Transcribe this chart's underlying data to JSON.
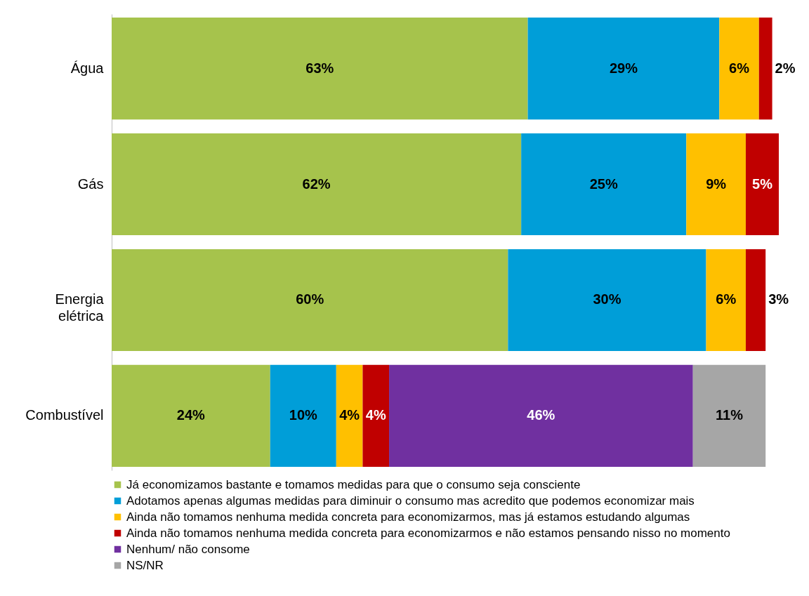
{
  "chart_data": {
    "type": "bar",
    "orientation": "horizontal",
    "stacked": true,
    "legend": "bottom",
    "tick_labels": "y",
    "categories": [
      "Água",
      "Gás",
      "Energia elétrica",
      "Combustível"
    ],
    "series": [
      {
        "name": "Já economizamos bastante e tomamos medidas para que o consumo seja consciente",
        "color": "#a6c34c",
        "values": [
          63,
          62,
          60,
          24
        ],
        "value_labels": [
          "63%",
          "62%",
          "60%",
          "24%"
        ]
      },
      {
        "name": "Adotamos apenas algumas medidas para diminuir o consumo mas acredito que podemos economizar mais",
        "color": "#009ed8",
        "values": [
          29,
          25,
          30,
          10
        ],
        "value_labels": [
          "29%",
          "25%",
          "30%",
          "10%"
        ]
      },
      {
        "name": "Ainda não tomamos nenhuma medida concreta para economizarmos, mas já estamos estudando algumas",
        "color": "#ffc000",
        "values": [
          6,
          9,
          6,
          4
        ],
        "value_labels": [
          "6%",
          "9%",
          "6%",
          "4%"
        ]
      },
      {
        "name": "Ainda não tomamos nenhuma medida concreta para economizarmos e não estamos pensando nisso no momento",
        "color": "#c00000",
        "values": [
          2,
          5,
          3,
          4
        ],
        "value_labels": [
          "2%",
          "5%",
          "3%",
          "4%"
        ]
      },
      {
        "name": "Nenhum/ não consome",
        "color": "#7030a0",
        "values": [
          null,
          null,
          null,
          46
        ],
        "value_labels": [
          null,
          null,
          null,
          "46%"
        ]
      },
      {
        "name": "NS/NR",
        "color": "#a6a6a6",
        "values": [
          null,
          null,
          null,
          11
        ],
        "value_labels": [
          null,
          null,
          null,
          "11%"
        ]
      }
    ]
  }
}
